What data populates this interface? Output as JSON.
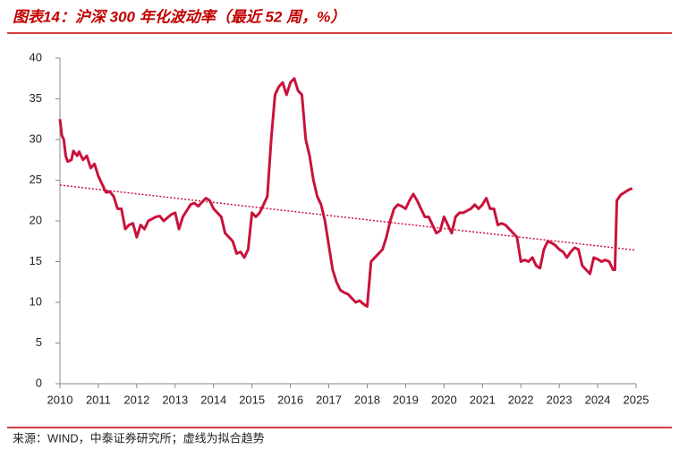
{
  "chart_data": {
    "type": "line",
    "title": "图表14：沪深 300 年化波动率（最近 52 周，%）",
    "source": "来源：WIND，中泰证券研究所；虚线为拟合趋势",
    "xlim": [
      2010,
      2025
    ],
    "xticks": [
      2010,
      2011,
      2012,
      2013,
      2014,
      2015,
      2016,
      2017,
      2018,
      2019,
      2020,
      2021,
      2022,
      2023,
      2024,
      2025
    ],
    "ylim": [
      0,
      40
    ],
    "yticks": [
      0,
      5,
      10,
      15,
      20,
      25,
      30,
      35,
      40
    ],
    "grid": false,
    "series": [
      {
        "color": "#c8133c",
        "dash": "solid",
        "x": [
          2010.0,
          2010.05,
          2010.1,
          2010.15,
          2010.2,
          2010.3,
          2010.35,
          2010.45,
          2010.5,
          2010.6,
          2010.7,
          2010.8,
          2010.9,
          2011.0,
          2011.1,
          2011.2,
          2011.3,
          2011.4,
          2011.5,
          2011.6,
          2011.7,
          2011.8,
          2011.9,
          2012.0,
          2012.1,
          2012.2,
          2012.3,
          2012.5,
          2012.6,
          2012.7,
          2012.8,
          2012.9,
          2013.0,
          2013.1,
          2013.2,
          2013.4,
          2013.5,
          2013.6,
          2013.8,
          2013.9,
          2014.0,
          2014.2,
          2014.3,
          2014.5,
          2014.6,
          2014.7,
          2014.8,
          2014.9,
          2015.0,
          2015.1,
          2015.2,
          2015.3,
          2015.4,
          2015.5,
          2015.6,
          2015.7,
          2015.8,
          2015.9,
          2016.0,
          2016.1,
          2016.2,
          2016.3,
          2016.4,
          2016.5,
          2016.6,
          2016.7,
          2016.8,
          2016.9,
          2017.0,
          2017.1,
          2017.2,
          2017.3,
          2017.4,
          2017.5,
          2017.6,
          2017.7,
          2017.8,
          2017.9,
          2018.0,
          2018.1,
          2018.2,
          2018.3,
          2018.4,
          2018.5,
          2018.6,
          2018.7,
          2018.8,
          2018.9,
          2019.0,
          2019.1,
          2019.2,
          2019.3,
          2019.4,
          2019.5,
          2019.6,
          2019.7,
          2019.8,
          2019.9,
          2020.0,
          2020.1,
          2020.2,
          2020.3,
          2020.4,
          2020.5,
          2020.7,
          2020.8,
          2020.9,
          2021.0,
          2021.1,
          2021.2,
          2021.3,
          2021.4,
          2021.5,
          2021.6,
          2021.7,
          2021.8,
          2021.9,
          2022.0,
          2022.1,
          2022.2,
          2022.3,
          2022.4,
          2022.5,
          2022.6,
          2022.7,
          2022.8,
          2022.9,
          2023.0,
          2023.1,
          2023.2,
          2023.3,
          2023.4,
          2023.5,
          2023.6,
          2023.7,
          2023.8,
          2023.9,
          2024.0,
          2024.1,
          2024.2,
          2024.3,
          2024.4,
          2024.45,
          2024.5,
          2024.6,
          2024.7,
          2024.8,
          2024.9
        ],
        "values": [
          32.5,
          30.5,
          30,
          28,
          27.3,
          27.5,
          28.6,
          28,
          28.5,
          27.5,
          28,
          26.5,
          27,
          25.5,
          24.5,
          23.5,
          23.6,
          23,
          21.5,
          21.5,
          19,
          19.5,
          19.7,
          18,
          19.5,
          19,
          20,
          20.5,
          20.6,
          20,
          20.4,
          20.8,
          21,
          19,
          20.5,
          22,
          22.2,
          21.8,
          22.8,
          22.5,
          21.5,
          20.5,
          18.5,
          17.5,
          16,
          16.2,
          15.5,
          16.5,
          21,
          20.5,
          21,
          22,
          23,
          30,
          35.5,
          36.5,
          37,
          35.5,
          37,
          37.5,
          36,
          35.5,
          30,
          28,
          25,
          23,
          22,
          20,
          17,
          14,
          12.5,
          11.5,
          11.2,
          11,
          10.5,
          10,
          10.2,
          9.8,
          9.5,
          15,
          15.5,
          16,
          16.5,
          18,
          20,
          21.5,
          22,
          21.8,
          21.5,
          22.5,
          23.3,
          22.5,
          21.5,
          20.5,
          20.5,
          19.5,
          18.5,
          18.8,
          20.5,
          19.5,
          18.5,
          20.5,
          21,
          21,
          21.5,
          22,
          21.5,
          22,
          22.8,
          21.5,
          21.5,
          19.5,
          19.7,
          19.5,
          19,
          18.5,
          18,
          15,
          15.2,
          15,
          15.5,
          14.5,
          14.2,
          16.5,
          17.5,
          17.3,
          17,
          16.5,
          16.2,
          15.5,
          16.2,
          16.7,
          16.5,
          14.5,
          14,
          13.5,
          15.5,
          15.3,
          15,
          15.2,
          15,
          14,
          14,
          22.5,
          23.2,
          23.5,
          23.8,
          24
        ]
      },
      {
        "color": "#c8133c",
        "dash": "dotted",
        "x": [
          2010,
          2025
        ],
        "values": [
          24.4,
          16.4
        ]
      }
    ]
  }
}
